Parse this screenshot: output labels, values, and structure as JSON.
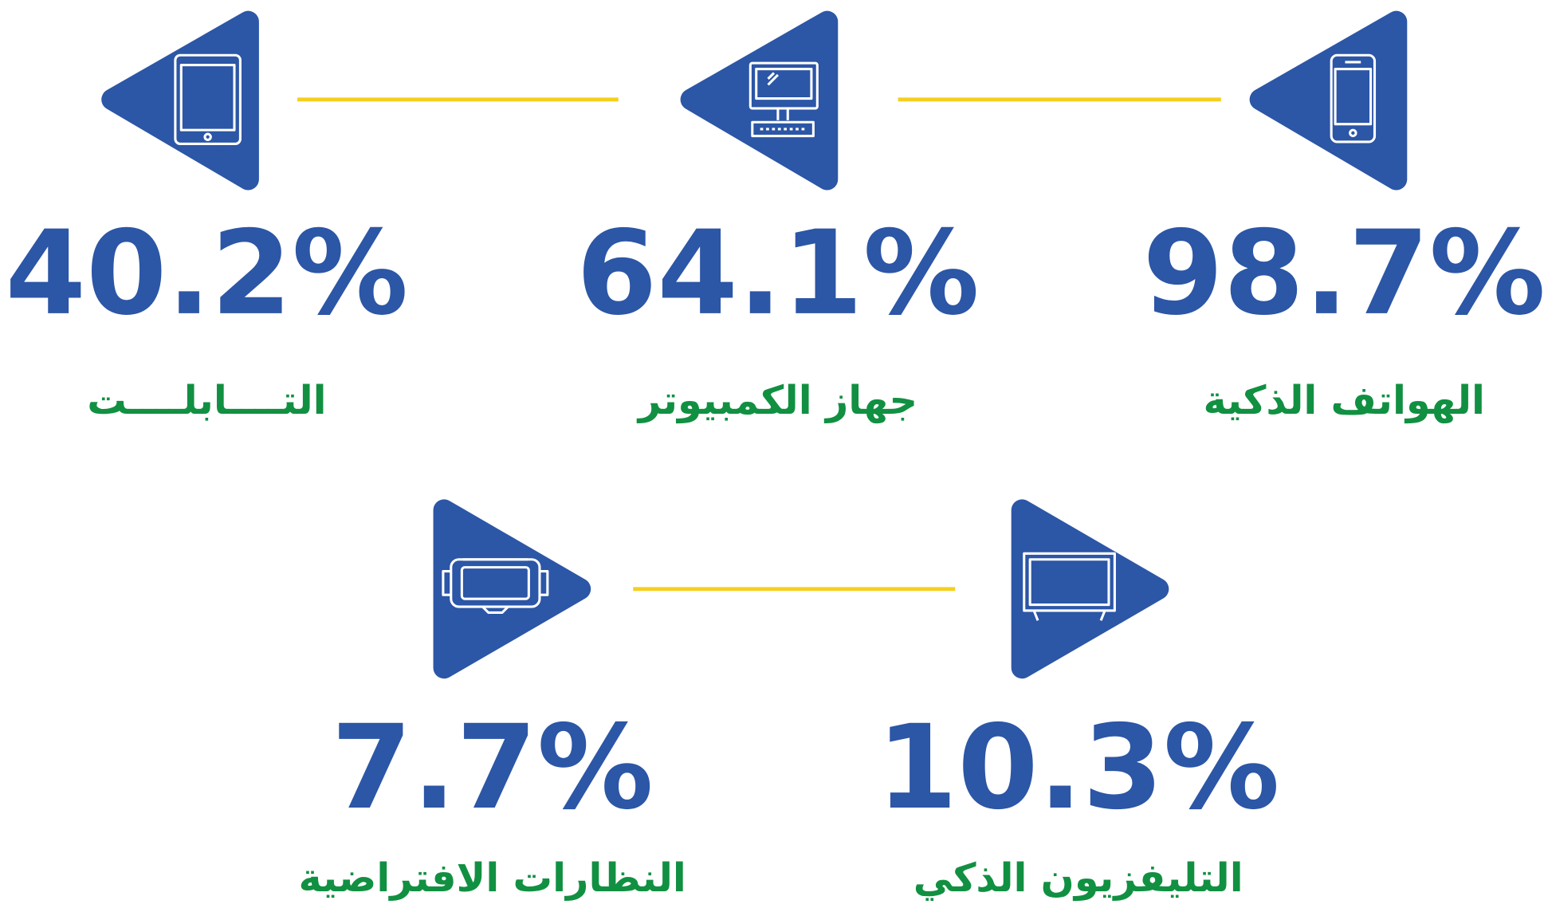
{
  "items": [
    {
      "value": "98.7%",
      "label": "الهواتف الذكية"
    },
    {
      "value": "64.1%",
      "label": "جهاز الكمبيوتر"
    },
    {
      "value": "40.2%",
      "label": "التــــابلــــت"
    },
    {
      "value": "10.3%",
      "label": "التليفزيون الذكي"
    },
    {
      "value": "7.7%",
      "label": "النظارات الافتراضية"
    }
  ]
}
